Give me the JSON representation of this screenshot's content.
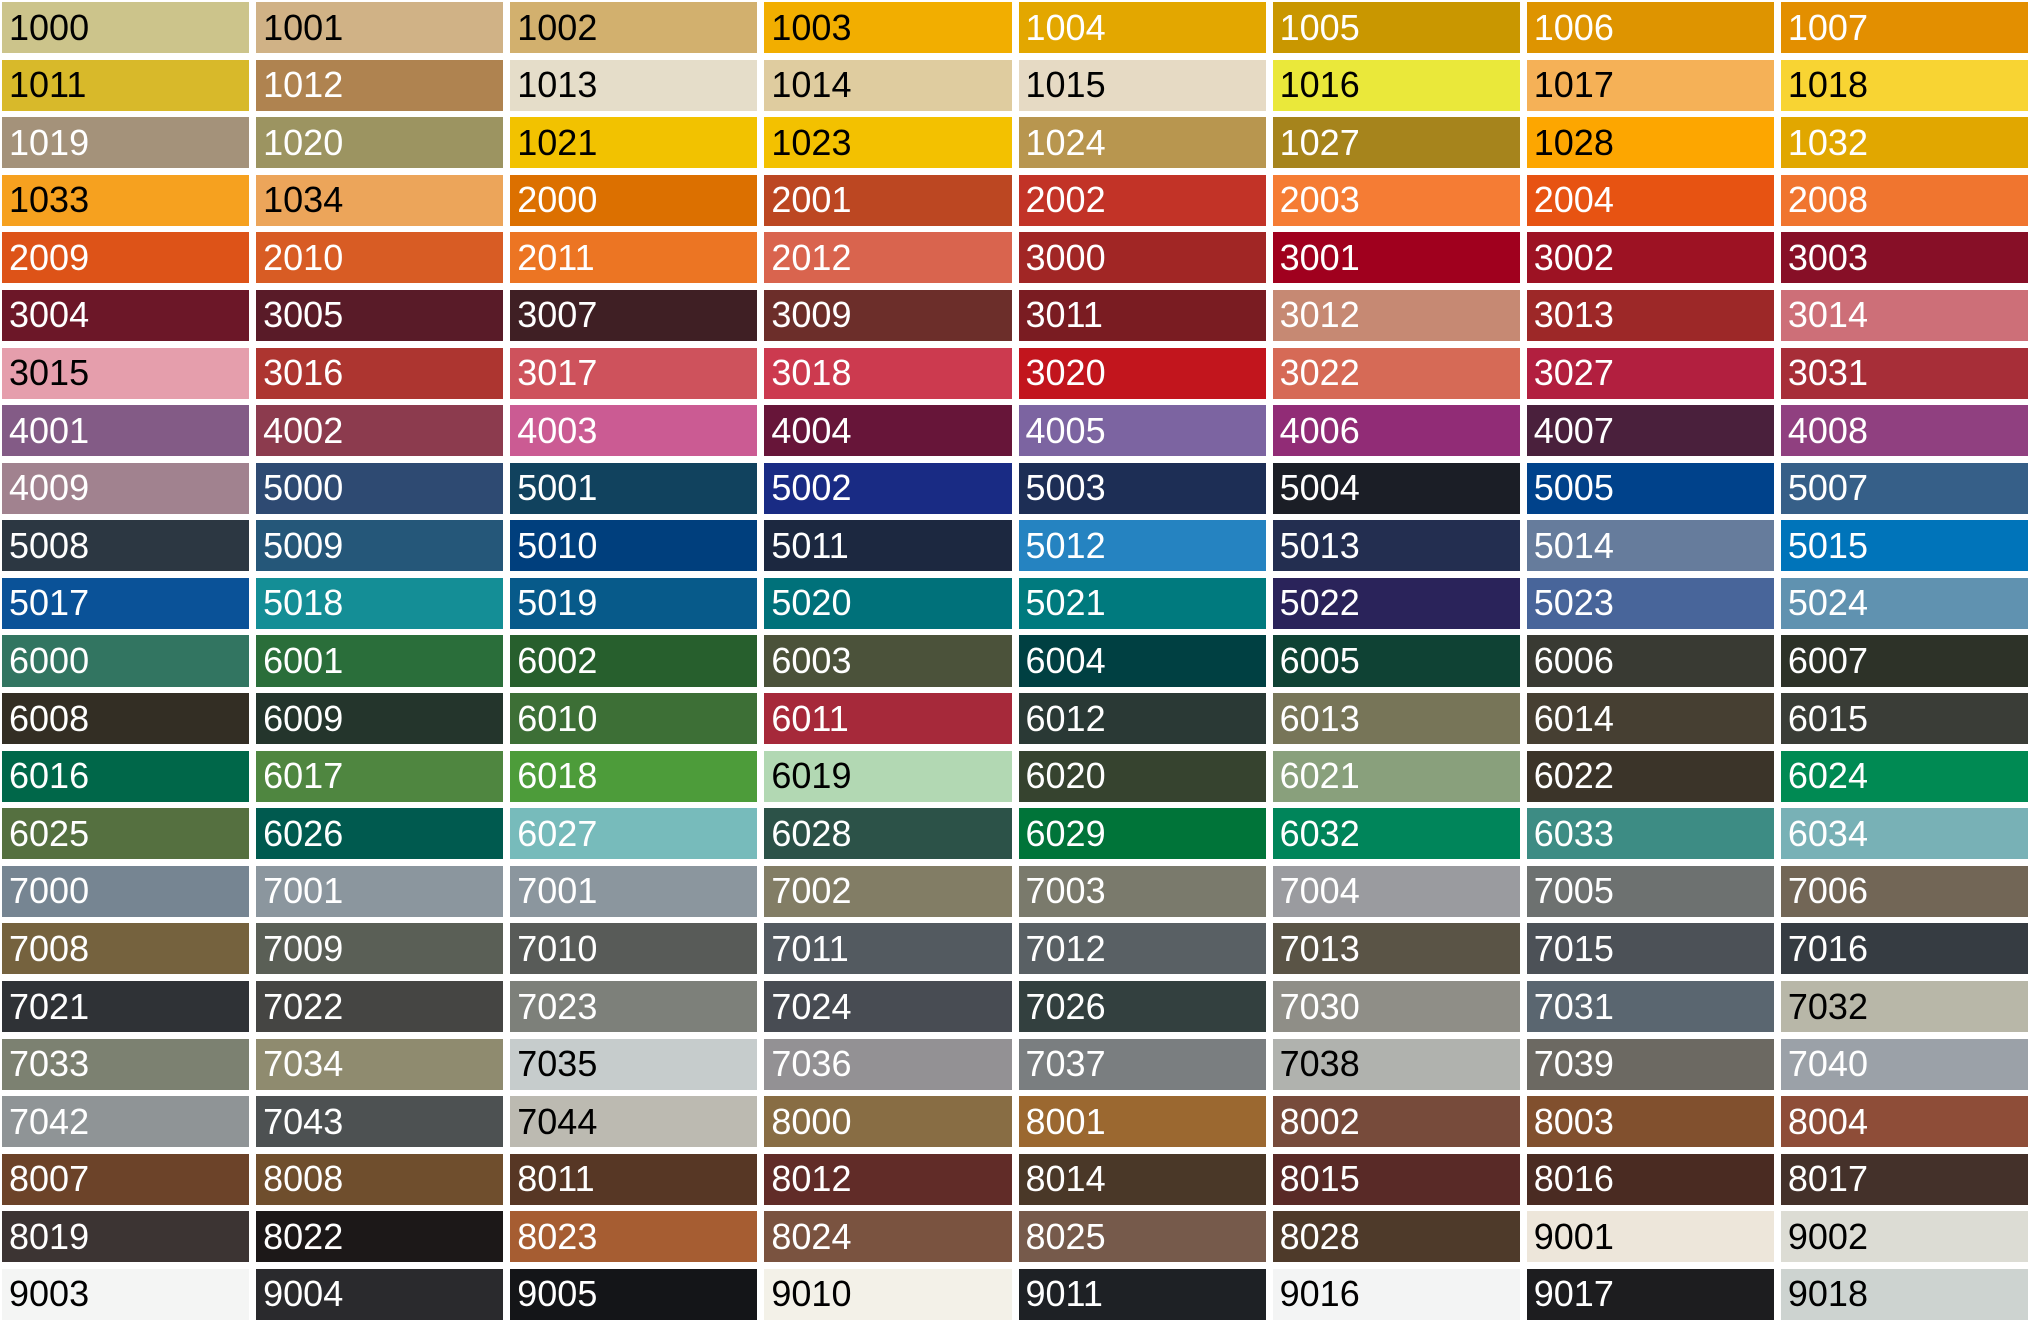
{
  "rows": [
    [
      [
        "1000",
        "#CCC48B",
        "#000"
      ],
      [
        "1001",
        "#D0B286",
        "#000"
      ],
      [
        "1002",
        "#D2B06E",
        "#000"
      ],
      [
        "1003",
        "#F2AE00",
        "#000"
      ],
      [
        "1004",
        "#E3A700",
        "#fff"
      ],
      [
        "1005",
        "#C99700",
        "#fff"
      ],
      [
        "1006",
        "#DE9400",
        "#fff"
      ],
      [
        "1007",
        "#E38F00",
        "#fff"
      ]
    ],
    [
      [
        "1011",
        "#D8B92A",
        "#000"
      ],
      [
        "1012",
        "#AF8350",
        "#fff"
      ],
      [
        "1013",
        "#E5DDC9",
        "#000"
      ],
      [
        "1014",
        "#DFCC9F",
        "#000"
      ],
      [
        "1015",
        "#E6DAC4",
        "#000"
      ],
      [
        "1016",
        "#EAE83A",
        "#000"
      ],
      [
        "1017",
        "#F5B157",
        "#000"
      ],
      [
        "1018",
        "#F8D433",
        "#000"
      ]
    ],
    [
      [
        "1019",
        "#A4927A",
        "#fff"
      ],
      [
        "1020",
        "#9C9461",
        "#fff"
      ],
      [
        "1021",
        "#F2C200",
        "#000"
      ],
      [
        "1023",
        "#F3C100",
        "#000"
      ],
      [
        "1024",
        "#B8964F",
        "#fff"
      ],
      [
        "1027",
        "#A6841C",
        "#fff"
      ],
      [
        "1028",
        "#FDA600",
        "#000"
      ],
      [
        "1032",
        "#E1A700",
        "#fff"
      ]
    ],
    [
      [
        "1033",
        "#F6A11F",
        "#000"
      ],
      [
        "1034",
        "#ECA55A",
        "#000"
      ],
      [
        "2000",
        "#DC7000",
        "#fff"
      ],
      [
        "2001",
        "#BC4722",
        "#fff"
      ],
      [
        "2002",
        "#C23327",
        "#fff"
      ],
      [
        "2003",
        "#F57C34",
        "#fff"
      ],
      [
        "2004",
        "#E75312",
        "#fff"
      ],
      [
        "2008",
        "#F0752F",
        "#fff"
      ]
    ],
    [
      [
        "2009",
        "#DD5318",
        "#fff"
      ],
      [
        "2010",
        "#D85C24",
        "#fff"
      ],
      [
        "2011",
        "#EC7523",
        "#fff"
      ],
      [
        "2012",
        "#D9644E",
        "#fff"
      ],
      [
        "3000",
        "#A12625",
        "#fff"
      ],
      [
        "3001",
        "#A0001E",
        "#fff"
      ],
      [
        "3002",
        "#9D1223",
        "#fff"
      ],
      [
        "3003",
        "#870F27",
        "#fff"
      ]
    ],
    [
      [
        "3004",
        "#6C1728",
        "#fff"
      ],
      [
        "3005",
        "#591B28",
        "#fff"
      ],
      [
        "3007",
        "#3F1F24",
        "#fff"
      ],
      [
        "3009",
        "#6C2E2A",
        "#fff"
      ],
      [
        "3011",
        "#7A1C22",
        "#fff"
      ],
      [
        "3012",
        "#C68973",
        "#fff"
      ],
      [
        "3013",
        "#9D2828",
        "#fff"
      ],
      [
        "3014",
        "#CD6F78",
        "#fff"
      ]
    ],
    [
      [
        "3015",
        "#E59EAC",
        "#000"
      ],
      [
        "3016",
        "#AD3530",
        "#fff"
      ],
      [
        "3017",
        "#CE525C",
        "#fff"
      ],
      [
        "3018",
        "#CC3A4F",
        "#fff"
      ],
      [
        "3020",
        "#C2151D",
        "#fff"
      ],
      [
        "3022",
        "#D66A56",
        "#fff"
      ],
      [
        "3027",
        "#B21F3F",
        "#fff"
      ],
      [
        "3031",
        "#A72E38",
        "#fff"
      ]
    ],
    [
      [
        "4001",
        "#835B86",
        "#fff"
      ],
      [
        "4002",
        "#8C3B4E",
        "#fff"
      ],
      [
        "4003",
        "#CB5B93",
        "#fff"
      ],
      [
        "4004",
        "#671539",
        "#fff"
      ],
      [
        "4005",
        "#7C64A1",
        "#fff"
      ],
      [
        "4006",
        "#912C76",
        "#fff"
      ],
      [
        "4007",
        "#4A203C",
        "#fff"
      ],
      [
        "4008",
        "#904080",
        "#fff"
      ]
    ],
    [
      [
        "4009",
        "#A1828F",
        "#fff"
      ],
      [
        "5000",
        "#2E4A72",
        "#fff"
      ],
      [
        "5001",
        "#11425E",
        "#fff"
      ],
      [
        "5002",
        "#192B84",
        "#fff"
      ],
      [
        "5003",
        "#1D2E55",
        "#fff"
      ],
      [
        "5004",
        "#1B1E26",
        "#fff"
      ],
      [
        "5005",
        "#00428B",
        "#fff"
      ],
      [
        "5007",
        "#365F88",
        "#fff"
      ]
    ],
    [
      [
        "5008",
        "#2C3742",
        "#fff"
      ],
      [
        "5009",
        "#255779",
        "#fff"
      ],
      [
        "5010",
        "#003F7D",
        "#fff"
      ],
      [
        "5011",
        "#1C2840",
        "#fff"
      ],
      [
        "5012",
        "#2583C1",
        "#fff"
      ],
      [
        "5013",
        "#232E50",
        "#fff"
      ],
      [
        "5014",
        "#667C9C",
        "#fff"
      ],
      [
        "5015",
        "#0074BA",
        "#fff"
      ]
    ],
    [
      [
        "5017",
        "#0A5298",
        "#fff"
      ],
      [
        "5018",
        "#148E96",
        "#fff"
      ],
      [
        "5019",
        "#075A8A",
        "#fff"
      ],
      [
        "5020",
        "#00717A",
        "#fff"
      ],
      [
        "5021",
        "#007A7E",
        "#fff"
      ],
      [
        "5022",
        "#2A235A",
        "#fff"
      ],
      [
        "5023",
        "#48659A",
        "#fff"
      ],
      [
        "5024",
        "#6092B0",
        "#fff"
      ]
    ],
    [
      [
        "6000",
        "#327561",
        "#fff"
      ],
      [
        "6001",
        "#2A6E3A",
        "#fff"
      ],
      [
        "6002",
        "#275F2D",
        "#fff"
      ],
      [
        "6003",
        "#4B523A",
        "#fff"
      ],
      [
        "6004",
        "#004042",
        "#fff"
      ],
      [
        "6005",
        "#0F4234",
        "#fff"
      ],
      [
        "6006",
        "#393A33",
        "#fff"
      ],
      [
        "6007",
        "#2D3228",
        "#fff"
      ]
    ],
    [
      [
        "6008",
        "#332E24",
        "#fff"
      ],
      [
        "6009",
        "#24352C",
        "#fff"
      ],
      [
        "6010",
        "#3D6F36",
        "#fff"
      ],
      [
        "6011",
        "#A6293A",
        "#fff"
      ],
      [
        "6012",
        "#2A3935",
        "#fff"
      ],
      [
        "6013",
        "#777558",
        "#fff"
      ],
      [
        "6014",
        "#463F32",
        "#fff"
      ],
      [
        "6015",
        "#3A3D37",
        "#fff"
      ]
    ],
    [
      [
        "6016",
        "#006749",
        "#fff"
      ],
      [
        "6017",
        "#4F8640",
        "#fff"
      ],
      [
        "6018",
        "#4D9C3A",
        "#fff"
      ],
      [
        "6019",
        "#B2D8B3",
        "#000"
      ],
      [
        "6020",
        "#36432F",
        "#fff"
      ],
      [
        "6021",
        "#89A07C",
        "#fff"
      ],
      [
        "6022",
        "#3B3429",
        "#fff"
      ],
      [
        "6024",
        "#008A53",
        "#fff"
      ]
    ],
    [
      [
        "6025",
        "#557040",
        "#fff"
      ],
      [
        "6026",
        "#005A4F",
        "#fff"
      ],
      [
        "6027",
        "#77BBBB",
        "#fff"
      ],
      [
        "6028",
        "#2C5248",
        "#fff"
      ],
      [
        "6029",
        "#007439",
        "#fff"
      ],
      [
        "6032",
        "#00855A",
        "#fff"
      ],
      [
        "6033",
        "#3D8C84",
        "#fff"
      ],
      [
        "6034",
        "#78B1B6",
        "#fff"
      ]
    ],
    [
      [
        "7000",
        "#768592",
        "#fff"
      ],
      [
        "7001",
        "#8B969E",
        "#fff"
      ],
      [
        "7001",
        "#8B969E",
        "#fff"
      ],
      [
        "7002",
        "#827D65",
        "#fff"
      ],
      [
        "7003",
        "#7A7A6C",
        "#fff"
      ],
      [
        "7004",
        "#9A9B9F",
        "#fff"
      ],
      [
        "7005",
        "#6D7170",
        "#fff"
      ],
      [
        "7006",
        "#726656",
        "#fff"
      ]
    ],
    [
      [
        "7008",
        "#75623E",
        "#fff"
      ],
      [
        "7009",
        "#5A5F56",
        "#fff"
      ],
      [
        "7010",
        "#585B58",
        "#fff"
      ],
      [
        "7011",
        "#535A60",
        "#fff"
      ],
      [
        "7012",
        "#596064",
        "#fff"
      ],
      [
        "7013",
        "#5A5446",
        "#fff"
      ],
      [
        "7015",
        "#4C5157",
        "#fff"
      ],
      [
        "7016",
        "#363C42",
        "#fff"
      ]
    ],
    [
      [
        "7021",
        "#2F3236",
        "#fff"
      ],
      [
        "7022",
        "#454543",
        "#fff"
      ],
      [
        "7023",
        "#7D807A",
        "#fff"
      ],
      [
        "7024",
        "#484C53",
        "#fff"
      ],
      [
        "7026",
        "#33403F",
        "#fff"
      ],
      [
        "7030",
        "#8F8E87",
        "#fff"
      ],
      [
        "7031",
        "#5A6670",
        "#fff"
      ],
      [
        "7032",
        "#B8B7A8",
        "#000"
      ]
    ],
    [
      [
        "7033",
        "#7C8171",
        "#fff"
      ],
      [
        "7034",
        "#8F8B6F",
        "#fff"
      ],
      [
        "7035",
        "#C6CCCC",
        "#000"
      ],
      [
        "7036",
        "#939194",
        "#fff"
      ],
      [
        "7037",
        "#7A7E80",
        "#fff"
      ],
      [
        "7038",
        "#B0B2AE",
        "#000"
      ],
      [
        "7039",
        "#6C6962",
        "#fff"
      ],
      [
        "7040",
        "#9BA1A8",
        "#fff"
      ]
    ],
    [
      [
        "7042",
        "#8F9496",
        "#fff"
      ],
      [
        "7043",
        "#4D5152",
        "#fff"
      ],
      [
        "7044",
        "#BCBAB1",
        "#000"
      ],
      [
        "8000",
        "#886D44",
        "#fff"
      ],
      [
        "8001",
        "#9B6830",
        "#fff"
      ],
      [
        "8002",
        "#774B3B",
        "#fff"
      ],
      [
        "8003",
        "#81502E",
        "#fff"
      ],
      [
        "8004",
        "#8E4D38",
        "#fff"
      ]
    ],
    [
      [
        "8007",
        "#6C4329",
        "#fff"
      ],
      [
        "8008",
        "#6F4E2D",
        "#fff"
      ],
      [
        "8011",
        "#573725",
        "#fff"
      ],
      [
        "8012",
        "#612C28",
        "#fff"
      ],
      [
        "8014",
        "#4A3828",
        "#fff"
      ],
      [
        "8015",
        "#592A27",
        "#fff"
      ],
      [
        "8016",
        "#4A2B22",
        "#fff"
      ],
      [
        "8017",
        "#44312A",
        "#fff"
      ]
    ],
    [
      [
        "8019",
        "#3C3433",
        "#fff"
      ],
      [
        "8022",
        "#1C1818",
        "#fff"
      ],
      [
        "8023",
        "#A65D32",
        "#fff"
      ],
      [
        "8024",
        "#7A5340",
        "#fff"
      ],
      [
        "8025",
        "#765A4B",
        "#fff"
      ],
      [
        "8028",
        "#4E3A2A",
        "#fff"
      ],
      [
        "9001",
        "#EDE6DA",
        "#000"
      ],
      [
        "9002",
        "#DCDCD4",
        "#000"
      ]
    ],
    [
      [
        "9003",
        "#F4F5F4",
        "#000"
      ],
      [
        "9004",
        "#2A2A2D",
        "#fff"
      ],
      [
        "9005",
        "#141518",
        "#fff"
      ],
      [
        "9010",
        "#F3F1E8",
        "#000"
      ],
      [
        "9011",
        "#1E2125",
        "#fff"
      ],
      [
        "9016",
        "#F3F4F4",
        "#000"
      ],
      [
        "9017",
        "#1D1D1F",
        "#fff"
      ],
      [
        "9018",
        "#CDD3D0",
        "#000"
      ]
    ]
  ]
}
